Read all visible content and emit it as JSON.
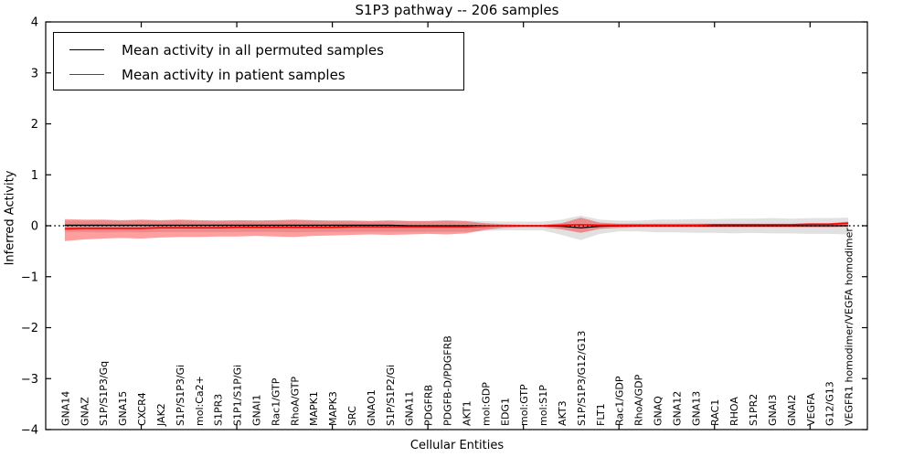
{
  "figure": {
    "title": "S1P3 pathway -- 206 samples",
    "xlabel": "Cellular Entities",
    "ylabel": "Inferred Activity"
  },
  "legend": {
    "items": [
      {
        "label": "Mean activity in all permuted samples",
        "color": "#000000"
      },
      {
        "label": "Mean activity in patient samples",
        "color": "#ff0000"
      }
    ]
  },
  "chart_data": {
    "type": "line",
    "title": "S1P3 pathway -- 206 samples",
    "xlabel": "Cellular Entities",
    "ylabel": "Inferred Activity",
    "ylim": [
      -4,
      4
    ],
    "yticks": [
      4,
      3,
      2,
      1,
      0,
      -1,
      -2,
      -3,
      -4
    ],
    "xtick_positions": [
      5,
      10,
      15,
      20,
      25,
      30,
      35,
      40
    ],
    "grid": false,
    "legend_position": "upper left",
    "zero_line": {
      "style": "dotted",
      "color": "#000000",
      "y": 0
    },
    "categories": [
      "GNA14",
      "GNAZ",
      "S1P/S1P3/Gq",
      "GNA15",
      "CXCR4",
      "JAK2",
      "S1P/S1P3/Gi",
      "mol:Ca2+",
      "S1PR3",
      "S1P1/S1P/Gi",
      "GNAI1",
      "Rac1/GTP",
      "RhoA/GTP",
      "MAPK1",
      "MAPK3",
      "SRC",
      "GNAO1",
      "S1P/S1P2/Gi",
      "GNA11",
      "PDGFRB",
      "PDGFB-D/PDGFRB",
      "AKT1",
      "mol:GDP",
      "EDG1",
      "mol:GTP",
      "mol:S1P",
      "AKT3",
      "S1P/S1P3/G12/G13",
      "FLT1",
      "Rac1/GDP",
      "RhoA/GDP",
      "GNAQ",
      "GNA12",
      "GNA13",
      "RAC1",
      "RHOA",
      "S1PR2",
      "GNAI3",
      "GNAI2",
      "VEGFA",
      "G12/G13",
      "VEGFR1 homodimer/VEGFA homodimer"
    ],
    "series": [
      {
        "name": "Mean activity in all permuted samples",
        "color": "#000000",
        "values": [
          0.01,
          0.01,
          0.01,
          0.01,
          0.01,
          0.01,
          0.01,
          0.01,
          0.01,
          0.01,
          0.01,
          0.01,
          0.01,
          0.01,
          0.01,
          0.01,
          0.01,
          0.01,
          0.0,
          0.0,
          0.0,
          0.0,
          0.0,
          0.0,
          0.0,
          0.0,
          -0.01,
          -0.04,
          -0.01,
          0.0,
          0.0,
          0.0,
          0.0,
          0.0,
          0.0,
          0.0,
          0.0,
          0.0,
          0.0,
          0.0,
          0.0,
          0.0
        ]
      },
      {
        "name": "Mean activity in patient samples",
        "color": "#ff0000",
        "values": [
          -0.06,
          -0.05,
          -0.05,
          -0.05,
          -0.05,
          -0.04,
          -0.04,
          -0.04,
          -0.04,
          -0.03,
          -0.03,
          -0.03,
          -0.03,
          -0.03,
          -0.03,
          -0.02,
          -0.02,
          -0.02,
          -0.02,
          -0.02,
          -0.02,
          -0.02,
          -0.01,
          0.0,
          0.0,
          0.0,
          0.01,
          0.02,
          0.01,
          0.01,
          0.01,
          0.01,
          0.01,
          0.01,
          0.02,
          0.02,
          0.02,
          0.02,
          0.02,
          0.03,
          0.03,
          0.05
        ]
      }
    ],
    "bands": [
      {
        "name": "permuted-samples-range",
        "color": "#aaaaaa",
        "opacity": 0.35,
        "upper": [
          0.1,
          0.1,
          0.11,
          0.1,
          0.11,
          0.1,
          0.11,
          0.1,
          0.1,
          0.1,
          0.11,
          0.1,
          0.11,
          0.1,
          0.1,
          0.1,
          0.1,
          0.11,
          0.1,
          0.1,
          0.11,
          0.1,
          0.09,
          0.08,
          0.08,
          0.08,
          0.12,
          0.2,
          0.12,
          0.1,
          0.1,
          0.12,
          0.12,
          0.13,
          0.13,
          0.14,
          0.14,
          0.15,
          0.14,
          0.15,
          0.15,
          0.16
        ],
        "lower": [
          -0.12,
          -0.12,
          -0.13,
          -0.12,
          -0.13,
          -0.12,
          -0.12,
          -0.12,
          -0.12,
          -0.12,
          -0.12,
          -0.12,
          -0.13,
          -0.12,
          -0.12,
          -0.12,
          -0.12,
          -0.12,
          -0.12,
          -0.12,
          -0.12,
          -0.12,
          -0.1,
          -0.09,
          -0.09,
          -0.09,
          -0.18,
          -0.28,
          -0.16,
          -0.11,
          -0.11,
          -0.13,
          -0.13,
          -0.14,
          -0.14,
          -0.15,
          -0.14,
          -0.15,
          -0.15,
          -0.16,
          -0.16,
          -0.17
        ]
      },
      {
        "name": "patient-samples-range",
        "color": "#ff0000",
        "opacity": 0.38,
        "upper": [
          0.13,
          0.12,
          0.12,
          0.11,
          0.12,
          0.11,
          0.12,
          0.11,
          0.1,
          0.11,
          0.1,
          0.11,
          0.12,
          0.11,
          0.1,
          0.1,
          0.09,
          0.1,
          0.09,
          0.09,
          0.1,
          0.09,
          0.05,
          0.03,
          0.02,
          0.02,
          0.05,
          0.16,
          0.06,
          0.04,
          0.04,
          0.04,
          0.04,
          0.04,
          0.04,
          0.04,
          0.04,
          0.04,
          0.04,
          0.05,
          0.05,
          0.08
        ],
        "lower": [
          -0.3,
          -0.27,
          -0.25,
          -0.24,
          -0.25,
          -0.23,
          -0.22,
          -0.22,
          -0.21,
          -0.21,
          -0.2,
          -0.21,
          -0.22,
          -0.2,
          -0.19,
          -0.18,
          -0.17,
          -0.18,
          -0.17,
          -0.16,
          -0.17,
          -0.15,
          -0.08,
          -0.04,
          -0.03,
          -0.03,
          -0.07,
          -0.14,
          -0.06,
          -0.04,
          -0.03,
          -0.03,
          -0.03,
          -0.03,
          -0.03,
          -0.03,
          -0.03,
          -0.03,
          -0.03,
          -0.03,
          -0.03,
          -0.02
        ]
      }
    ]
  }
}
